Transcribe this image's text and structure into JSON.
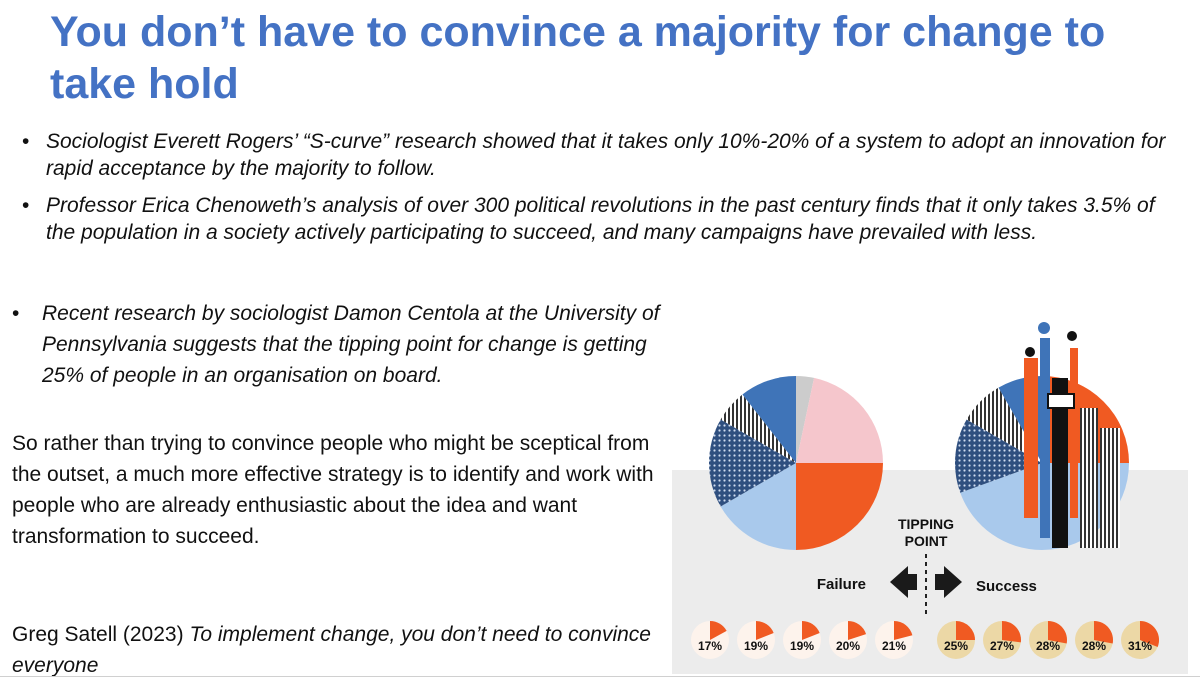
{
  "slide": {
    "title": "You don’t have to convince a majority for change to take hold",
    "bullets": [
      "Sociologist Everett Rogers’ “S-curve” research showed that it takes only 10%-20% of a system to adopt an innovation for rapid acceptance by the majority to follow.",
      "Professor Erica Chenoweth’s analysis of over 300 political revolutions in the past century finds that it only takes 3.5% of the population in a society actively participating to succeed, and many campaigns have prevailed with less.",
      "Recent research by sociologist Damon Centola at the University of Pennsylvania suggests that the tipping point for change is getting 25% of people in an organisation on board."
    ],
    "paragraph": "So rather than trying to convince people who might be sceptical from the outset, a much more effective strategy is to identify and work with people who are already enthusiastic about the idea and want transformation to succeed.",
    "citation_author": "Greg Satell (2023)",
    "citation_title": "To implement change, you don’t need to convince everyone"
  },
  "figure": {
    "tipping_point_line1": "TIPPING",
    "tipping_point_line2": "POINT",
    "failure_label": "Failure",
    "success_label": "Success",
    "failure_percents": [
      "17%",
      "19%",
      "19%",
      "20%",
      "21%"
    ],
    "success_percents": [
      "25%",
      "27%",
      "28%",
      "28%",
      "31%"
    ],
    "failure_values": [
      17,
      19,
      19,
      20,
      21
    ],
    "success_values": [
      25,
      27,
      28,
      28,
      31
    ],
    "colors": {
      "orange": "#f05a22",
      "blue": "#3f74b8",
      "light_blue": "#a9c9ec",
      "pink": "#f5c6cc",
      "failure_pie_bg": "#fdf3ec",
      "success_pie_bg": "#ecd8a6",
      "backdrop": "#ececec"
    }
  }
}
